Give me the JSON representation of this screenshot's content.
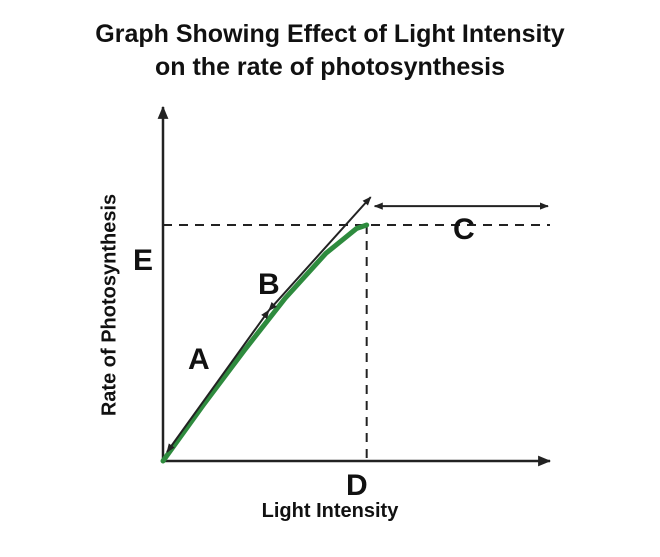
{
  "chart_data": {
    "type": "line",
    "title_line1": "Graph Showing Effect of Light Intensity",
    "title_line2": "on the rate of photosynthesis",
    "xlabel": "Light Intensity",
    "ylabel": "Rate of Photosynthesis",
    "series": [
      {
        "color": "#2e8b3e",
        "x": [
          0,
          0.2,
          0.4,
          0.6,
          0.8,
          0.9,
          0.95,
          1.0
        ],
        "y": [
          0,
          0.24,
          0.47,
          0.69,
          0.88,
          0.95,
          0.985,
          1.0
        ]
      }
    ],
    "xlim": [
      0,
      1.9
    ],
    "ylim": [
      0,
      1.5
    ],
    "grid": false,
    "reference_lines": [
      {
        "label": "E",
        "axis": "y",
        "value": 1.0
      },
      {
        "label": "D",
        "axis": "x",
        "value": 1.0
      }
    ],
    "annotations": [
      {
        "label": "A",
        "from": [
          0,
          0
        ],
        "to": [
          0.5,
          0.6
        ]
      },
      {
        "label": "B",
        "from": [
          0.5,
          0.6
        ],
        "to": [
          1.0,
          1.08
        ]
      },
      {
        "label": "C",
        "from": [
          1.0,
          1.08
        ],
        "to": [
          1.9,
          1.08
        ]
      }
    ],
    "colors": {
      "curve": "#2e8b3e",
      "axis": "#222222",
      "text": "#111111"
    }
  }
}
